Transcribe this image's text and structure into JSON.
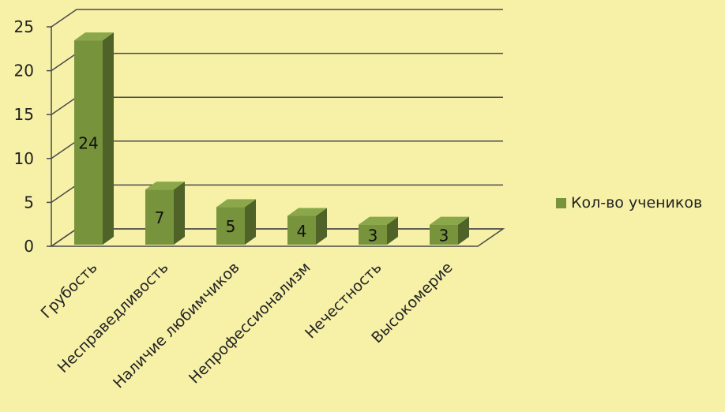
{
  "colors": {
    "bar_front": "#77933c",
    "bar_side": "#4f6228",
    "bar_top": "#8aa84a",
    "grid": "#4a4a4a",
    "background": "#f7f1a8"
  },
  "chart_data": {
    "type": "bar",
    "categories": [
      "Грубость",
      "Несправедливость",
      "Наличие любимчиков",
      "Непрофессионализм",
      "Нечестность",
      "Высокомерие"
    ],
    "series": [
      {
        "name": "Кол-во учеников",
        "values": [
          24,
          7,
          5,
          4,
          3,
          3
        ]
      }
    ],
    "title": "",
    "xlabel": "",
    "ylabel": "",
    "ylim": [
      0,
      25
    ],
    "yticks": [
      0,
      5,
      10,
      15,
      20,
      25
    ],
    "grid": true,
    "legend": "right",
    "data_labels": true,
    "style": "3d"
  }
}
